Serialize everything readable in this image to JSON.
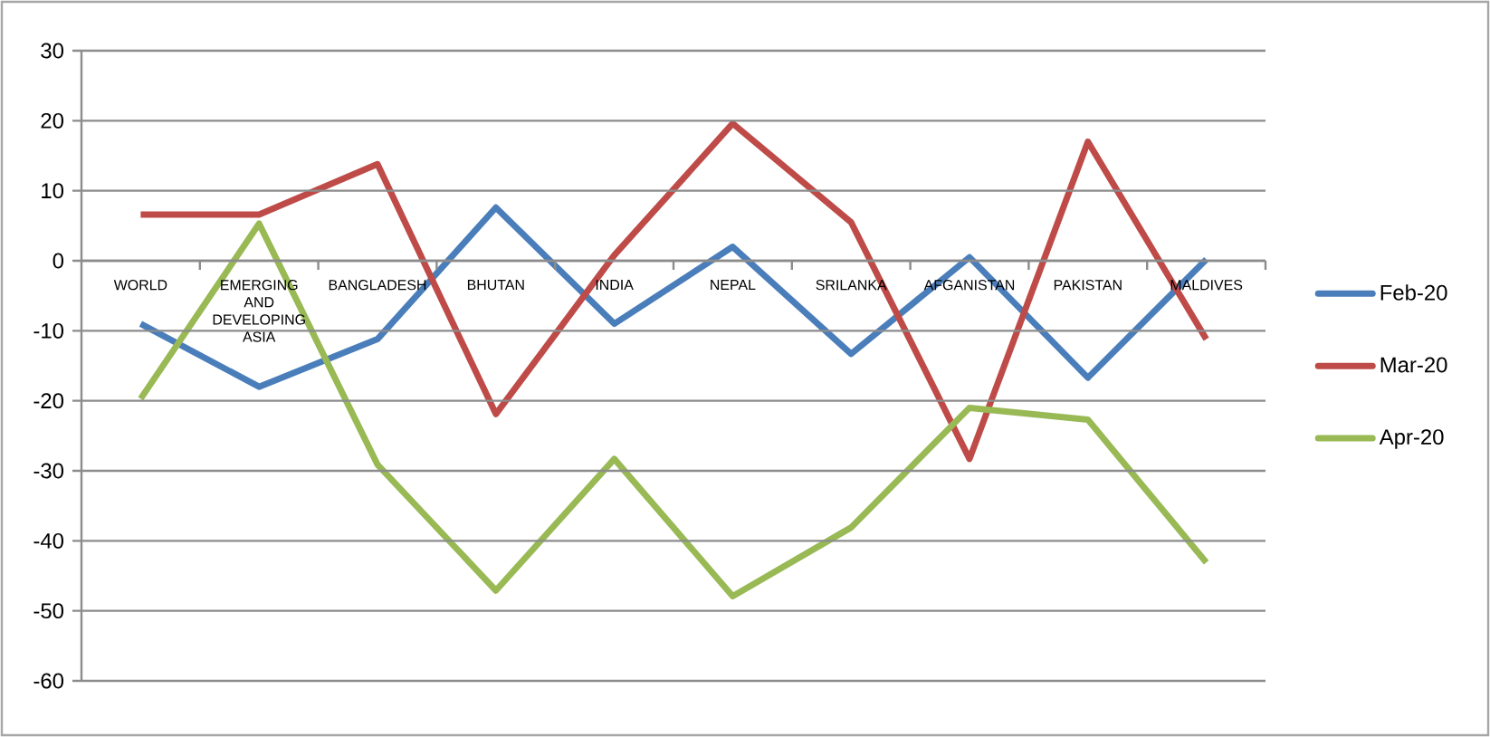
{
  "chart_data": {
    "type": "line",
    "categories": [
      "WORLD",
      "EMERGING AND DEVELOPING ASIA",
      "BANGLADESH",
      "BHUTAN",
      "INDIA",
      "NEPAL",
      "SRILANKA",
      "AFGANISTAN",
      "PAKISTAN",
      "MALDIVES"
    ],
    "series": [
      {
        "name": "Feb-20",
        "color": "#4a7ebb",
        "values": [
          -9,
          -18,
          -11.2,
          7.6,
          -9,
          2,
          -13.3,
          0.5,
          -16.7,
          0.2
        ]
      },
      {
        "name": "Mar-20",
        "color": "#be4b48",
        "values": [
          6.6,
          6.6,
          13.8,
          -21.9,
          0.8,
          19.6,
          5.5,
          -28.3,
          17,
          -11.2
        ]
      },
      {
        "name": "Apr-20",
        "color": "#98b954",
        "values": [
          -19.7,
          5.3,
          -29.1,
          -47.1,
          -28.3,
          -47.9,
          -38.1,
          -21,
          -22.7,
          -43.1
        ]
      }
    ],
    "ylim": [
      -60,
      30
    ],
    "yticks": [
      -60,
      -50,
      -40,
      -30,
      -20,
      -10,
      0,
      10,
      20,
      30
    ],
    "grid": "y",
    "legend": "right"
  }
}
